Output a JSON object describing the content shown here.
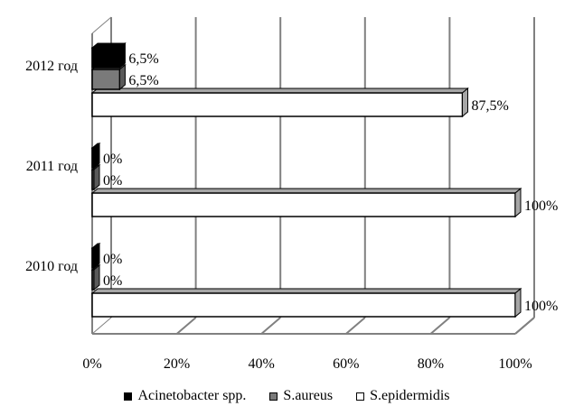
{
  "chart_data": {
    "type": "bar",
    "orientation": "horizontal",
    "style": "3d",
    "categories": [
      "2010 год",
      "2011 год",
      "2012 год"
    ],
    "series": [
      {
        "name": "Acinetobacter spp.",
        "values": [
          0,
          0,
          6.5
        ],
        "labels": [
          "0%",
          "0%",
          "6,5%"
        ],
        "color": "#000000"
      },
      {
        "name": "S.aureus",
        "values": [
          0,
          0,
          6.5
        ],
        "labels": [
          "0%",
          "0%",
          "6,5%"
        ],
        "color": "#7a7a7a"
      },
      {
        "name": "S.epidermidis",
        "values": [
          100,
          100,
          87.5
        ],
        "labels": [
          "100%",
          "100%",
          "87,5%"
        ],
        "color": "#ffffff"
      }
    ],
    "x_ticks": [
      0,
      20,
      40,
      60,
      80,
      100
    ],
    "x_tick_labels": [
      "0%",
      "20%",
      "40%",
      "60%",
      "80%",
      "100%"
    ],
    "xlim": [
      0,
      100
    ],
    "grid": true,
    "legend_position": "bottom",
    "title": "",
    "xlabel": "",
    "ylabel": ""
  }
}
